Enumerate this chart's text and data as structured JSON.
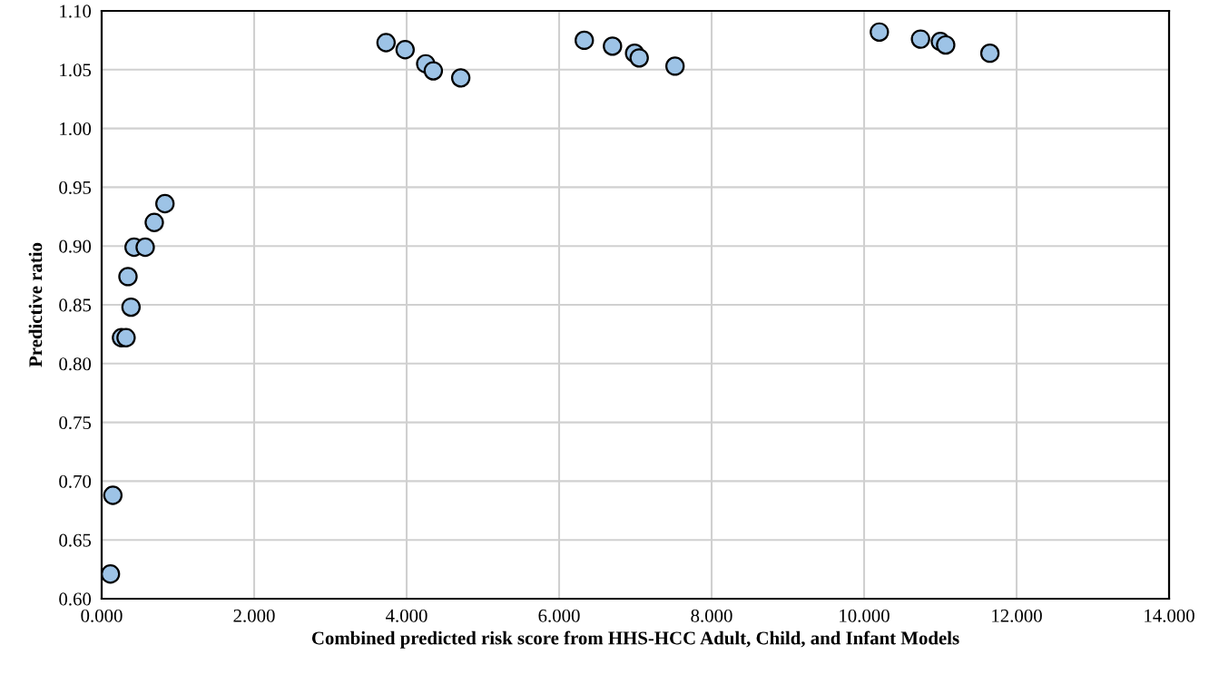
{
  "chart_data": {
    "type": "scatter",
    "xlabel": "Combined predicted risk score from HHS-HCC Adult, Child, and Infant Models",
    "ylabel": "Predictive ratio",
    "series": [
      {
        "color": "#9dc3e6",
        "x": [
          0.115,
          0.147,
          0.26,
          0.32,
          0.385,
          0.345,
          0.425,
          0.571,
          0.69,
          0.83,
          3.73,
          3.98,
          4.25,
          4.35,
          4.71,
          6.33,
          6.7,
          6.99,
          7.05,
          7.52,
          10.2,
          10.74,
          11.0,
          11.07,
          11.65
        ],
        "values": [
          0.621,
          0.688,
          0.822,
          0.822,
          0.848,
          0.874,
          0.899,
          0.899,
          0.92,
          0.936,
          1.073,
          1.067,
          1.055,
          1.049,
          1.043,
          1.075,
          1.07,
          1.064,
          1.06,
          1.053,
          1.082,
          1.076,
          1.074,
          1.071,
          1.064
        ]
      }
    ],
    "marker": "circle",
    "grid": true,
    "xlim": [
      0,
      14
    ],
    "ylim": [
      0.6,
      1.1
    ],
    "xticks": [
      {
        "value": 0,
        "label": "0.000"
      },
      {
        "value": 2,
        "label": "2.000"
      },
      {
        "value": 4,
        "label": "4.000"
      },
      {
        "value": 6,
        "label": "6.000"
      },
      {
        "value": 8,
        "label": "8.000"
      },
      {
        "value": 10,
        "label": "10.000"
      },
      {
        "value": 12,
        "label": "12.000"
      },
      {
        "value": 14,
        "label": "14.000"
      }
    ],
    "yticks": [
      {
        "value": 0.6,
        "label": "0.60"
      },
      {
        "value": 0.65,
        "label": "0.65"
      },
      {
        "value": 0.7,
        "label": "0.70"
      },
      {
        "value": 0.75,
        "label": "0.75"
      },
      {
        "value": 0.8,
        "label": "0.80"
      },
      {
        "value": 0.85,
        "label": "0.85"
      },
      {
        "value": 0.9,
        "label": "0.90"
      },
      {
        "value": 0.95,
        "label": "0.95"
      },
      {
        "value": 1.0,
        "label": "1.00"
      },
      {
        "value": 1.05,
        "label": "1.05"
      },
      {
        "value": 1.1,
        "label": "1.10"
      }
    ]
  }
}
